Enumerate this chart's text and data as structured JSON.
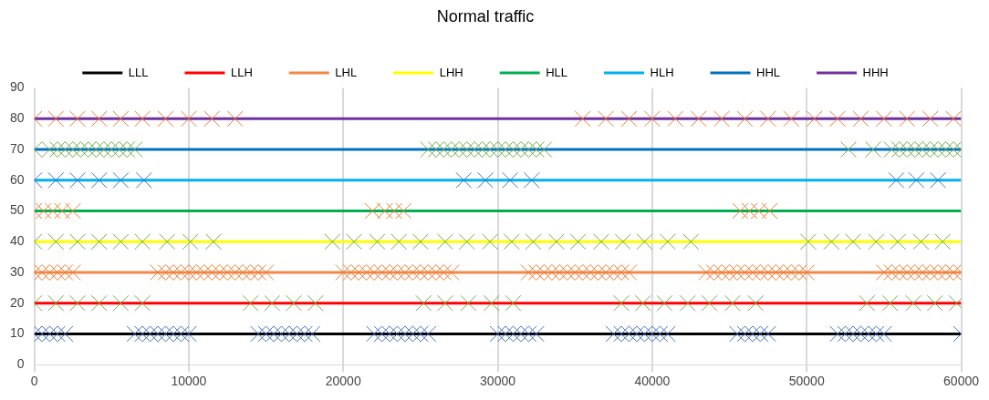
{
  "chart_data": {
    "type": "line",
    "title": "Normal traffic",
    "xlim": [
      0,
      60000
    ],
    "xticks": [
      0,
      10000,
      20000,
      30000,
      40000,
      50000,
      60000
    ],
    "ylim": [
      0,
      90
    ],
    "yticks": [
      0,
      10,
      20,
      30,
      40,
      50,
      60,
      70,
      80,
      90
    ],
    "grid": "x",
    "legend": "top",
    "series": [
      {
        "name": "LLL",
        "type": "line",
        "marker": "none",
        "color": "#000000",
        "x": [
          0,
          60000
        ],
        "values": [
          10,
          10
        ]
      },
      {
        "name": "LLH",
        "type": "line",
        "marker": "none",
        "color": "#ff0000",
        "x": [
          0,
          60000
        ],
        "values": [
          20,
          20
        ]
      },
      {
        "name": "LHL",
        "type": "line",
        "marker": "none",
        "color": "#f4884a",
        "x": [
          0,
          60000
        ],
        "values": [
          30,
          30
        ]
      },
      {
        "name": "LHH",
        "type": "line",
        "marker": "none",
        "color": "#ffff00",
        "x": [
          0,
          60000
        ],
        "values": [
          40,
          40
        ]
      },
      {
        "name": "HLL",
        "type": "line",
        "marker": "none",
        "color": "#00b050",
        "x": [
          0,
          60000
        ],
        "values": [
          50,
          50
        ]
      },
      {
        "name": "HLH",
        "type": "line",
        "marker": "none",
        "color": "#00b0f0",
        "x": [
          0,
          60000
        ],
        "values": [
          60,
          60
        ]
      },
      {
        "name": "HHL",
        "type": "line",
        "marker": "none",
        "color": "#0070c0",
        "x": [
          0,
          60000
        ],
        "values": [
          70,
          70
        ]
      },
      {
        "name": "HHH",
        "type": "line",
        "marker": "none",
        "color": "#7030a0",
        "x": [
          0,
          60000
        ],
        "values": [
          80,
          80
        ]
      },
      {
        "type": "scatter",
        "marker": "cross",
        "color": "#4472c4",
        "x": [
          0,
          500,
          1000,
          1500,
          2000,
          6500,
          7000,
          7500,
          8000,
          8500,
          9000,
          9500,
          10000,
          14500,
          15000,
          15500,
          16000,
          16500,
          17000,
          17500,
          18000,
          22000,
          22500,
          23000,
          23500,
          24000,
          24500,
          25000,
          25500,
          30000,
          30500,
          31000,
          31500,
          32000,
          32500,
          37500,
          38000,
          38500,
          39000,
          39500,
          40000,
          40500,
          41000,
          45500,
          46000,
          46500,
          47000,
          47500,
          52000,
          52500,
          53000,
          53500,
          54000,
          54500,
          55000,
          60000
        ],
        "values": [
          10,
          10,
          10,
          10,
          10,
          10,
          10,
          10,
          10,
          10,
          10,
          10,
          10,
          10,
          10,
          10,
          10,
          10,
          10,
          10,
          10,
          10,
          10,
          10,
          10,
          10,
          10,
          10,
          10,
          10,
          10,
          10,
          10,
          10,
          10,
          10,
          10,
          10,
          10,
          10,
          10,
          10,
          10,
          10,
          10,
          10,
          10,
          10,
          10,
          10,
          10,
          10,
          10,
          10,
          10,
          10
        ]
      },
      {
        "type": "scatter",
        "marker": "cross",
        "color": "#70ad47",
        "x": [
          0,
          1400,
          2800,
          4200,
          5600,
          7000,
          14000,
          15400,
          16800,
          18200,
          25200,
          26600,
          28100,
          29600,
          31000,
          38000,
          39400,
          40800,
          42300,
          43700,
          45200,
          46700,
          53900,
          55400,
          56900,
          58300,
          59700
        ],
        "values": [
          20,
          20,
          20,
          20,
          20,
          20,
          20,
          20,
          20,
          20,
          20,
          20,
          20,
          20,
          20,
          20,
          20,
          20,
          20,
          20,
          20,
          20,
          20,
          20,
          20,
          20,
          20
        ]
      },
      {
        "type": "scatter",
        "marker": "cross",
        "color": "#ed7d31",
        "x": [
          0,
          500,
          1000,
          1500,
          2000,
          2500,
          8000,
          8500,
          9000,
          9500,
          10000,
          10500,
          11000,
          11500,
          12000,
          12500,
          13000,
          13500,
          14000,
          14500,
          15000,
          20000,
          20500,
          21000,
          21500,
          22000,
          22500,
          23000,
          23500,
          24000,
          24500,
          25000,
          25500,
          26000,
          26500,
          27000,
          32000,
          32500,
          33000,
          33500,
          34000,
          34500,
          35000,
          35500,
          36000,
          36500,
          37000,
          37500,
          38000,
          38500,
          43500,
          44000,
          44500,
          45000,
          45500,
          46000,
          46500,
          47000,
          47500,
          48000,
          48500,
          49000,
          49500,
          50000,
          55000,
          55500,
          56000,
          56500,
          57000,
          57500,
          58000,
          58500,
          59000,
          59500,
          60000
        ],
        "values": [
          30,
          30,
          30,
          30,
          30,
          30,
          30,
          30,
          30,
          30,
          30,
          30,
          30,
          30,
          30,
          30,
          30,
          30,
          30,
          30,
          30,
          30,
          30,
          30,
          30,
          30,
          30,
          30,
          30,
          30,
          30,
          30,
          30,
          30,
          30,
          30,
          30,
          30,
          30,
          30,
          30,
          30,
          30,
          30,
          30,
          30,
          30,
          30,
          30,
          30,
          30,
          30,
          30,
          30,
          30,
          30,
          30,
          30,
          30,
          30,
          30,
          30,
          30,
          30,
          30,
          30,
          30,
          30,
          30,
          30,
          30,
          30,
          30,
          30,
          30
        ]
      },
      {
        "type": "scatter",
        "marker": "cross",
        "color": "#70ad47",
        "x": [
          0,
          1400,
          2800,
          4200,
          5600,
          7000,
          8600,
          10100,
          11600,
          19300,
          20700,
          22200,
          23600,
          25000,
          26600,
          28000,
          29500,
          30900,
          32300,
          33800,
          35200,
          36700,
          38100,
          39500,
          41000,
          42500,
          50100,
          51600,
          53000,
          54500,
          55900,
          57400,
          58800
        ],
        "values": [
          40,
          40,
          40,
          40,
          40,
          40,
          40,
          40,
          40,
          40,
          40,
          40,
          40,
          40,
          40,
          40,
          40,
          40,
          40,
          40,
          40,
          40,
          40,
          40,
          40,
          40,
          40,
          40,
          40,
          40,
          40,
          40,
          40
        ]
      },
      {
        "type": "scatter",
        "marker": "cross",
        "color": "#ed7d31",
        "x": [
          0,
          600,
          1200,
          1800,
          2500,
          21900,
          22700,
          23300,
          23900,
          45700,
          46300,
          46900,
          47600
        ],
        "values": [
          50,
          50,
          50,
          50,
          50,
          50,
          50,
          50,
          50,
          50,
          50,
          50,
          50
        ]
      },
      {
        "type": "scatter",
        "marker": "cross",
        "color": "#4472c4",
        "x": [
          0,
          1400,
          2800,
          4200,
          5600,
          7100,
          27800,
          29200,
          30800,
          32200,
          55800,
          57100,
          58500
        ],
        "values": [
          60,
          60,
          60,
          60,
          60,
          60,
          60,
          60,
          60,
          60,
          60,
          60,
          60
        ]
      },
      {
        "type": "scatter",
        "marker": "cross",
        "color": "#70ad47",
        "x": [
          0,
          1000,
          1500,
          2000,
          2500,
          3000,
          3500,
          4000,
          4500,
          5000,
          5500,
          6000,
          6500,
          25500,
          26000,
          26500,
          27000,
          27500,
          28000,
          28500,
          29000,
          29500,
          30000,
          30500,
          31000,
          31500,
          32000,
          32500,
          33000,
          52700,
          54300,
          55500,
          56000,
          56500,
          57000,
          57500,
          58000,
          58500,
          59000,
          59500,
          60000
        ],
        "values": [
          70,
          70,
          70,
          70,
          70,
          70,
          70,
          70,
          70,
          70,
          70,
          70,
          70,
          70,
          70,
          70,
          70,
          70,
          70,
          70,
          70,
          70,
          70,
          70,
          70,
          70,
          70,
          70,
          70,
          70,
          70,
          70,
          70,
          70,
          70,
          70,
          70,
          70,
          70,
          70,
          70
        ]
      },
      {
        "type": "scatter",
        "marker": "cross",
        "color": "#ed7d31",
        "x": [
          0,
          1400,
          2800,
          4200,
          5600,
          7000,
          8500,
          10000,
          11500,
          13000,
          35500,
          37000,
          38500,
          40000,
          41500,
          43000,
          44500,
          46000,
          47500,
          49000,
          50500,
          52000,
          53500,
          55000,
          56500,
          58000,
          59500
        ],
        "values": [
          80,
          80,
          80,
          80,
          80,
          80,
          80,
          80,
          80,
          80,
          80,
          80,
          80,
          80,
          80,
          80,
          80,
          80,
          80,
          80,
          80,
          80,
          80,
          80,
          80,
          80,
          80
        ]
      }
    ]
  }
}
